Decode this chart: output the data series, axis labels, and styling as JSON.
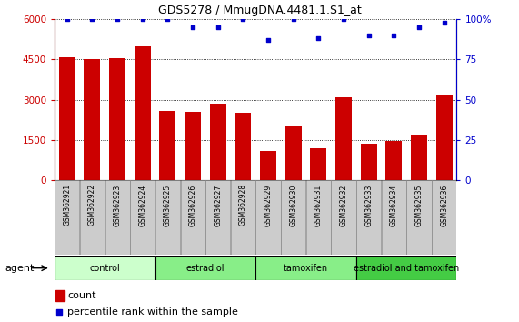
{
  "title": "GDS5278 / MmugDNA.4481.1.S1_at",
  "samples": [
    "GSM362921",
    "GSM362922",
    "GSM362923",
    "GSM362924",
    "GSM362925",
    "GSM362926",
    "GSM362927",
    "GSM362928",
    "GSM362929",
    "GSM362930",
    "GSM362931",
    "GSM362932",
    "GSM362933",
    "GSM362934",
    "GSM362935",
    "GSM362936"
  ],
  "counts": [
    4600,
    4500,
    4550,
    5000,
    2600,
    2550,
    2850,
    2500,
    1100,
    2050,
    1200,
    3100,
    1350,
    1450,
    1700,
    3200
  ],
  "percentiles": [
    100,
    100,
    100,
    100,
    100,
    95,
    95,
    100,
    87,
    100,
    88,
    100,
    90,
    90,
    95,
    98
  ],
  "bar_color": "#cc0000",
  "dot_color": "#0000cc",
  "ylim_left": [
    0,
    6000
  ],
  "ylim_right": [
    0,
    100
  ],
  "yticks_left": [
    0,
    1500,
    3000,
    4500,
    6000
  ],
  "yticks_right": [
    0,
    25,
    50,
    75,
    100
  ],
  "groups": [
    {
      "label": "control",
      "start": 0,
      "end": 4,
      "color": "#ccffcc"
    },
    {
      "label": "estradiol",
      "start": 4,
      "end": 8,
      "color": "#88ee88"
    },
    {
      "label": "tamoxifen",
      "start": 8,
      "end": 12,
      "color": "#88ee88"
    },
    {
      "label": "estradiol and tamoxifen",
      "start": 12,
      "end": 16,
      "color": "#44cc44"
    }
  ],
  "agent_label": "agent",
  "legend_count_label": "count",
  "legend_pct_label": "percentile rank within the sample",
  "bg_color": "#ffffff",
  "tick_color_left": "#cc0000",
  "tick_color_right": "#0000cc",
  "grid_color": "#000000",
  "xtick_bg": "#cccccc"
}
